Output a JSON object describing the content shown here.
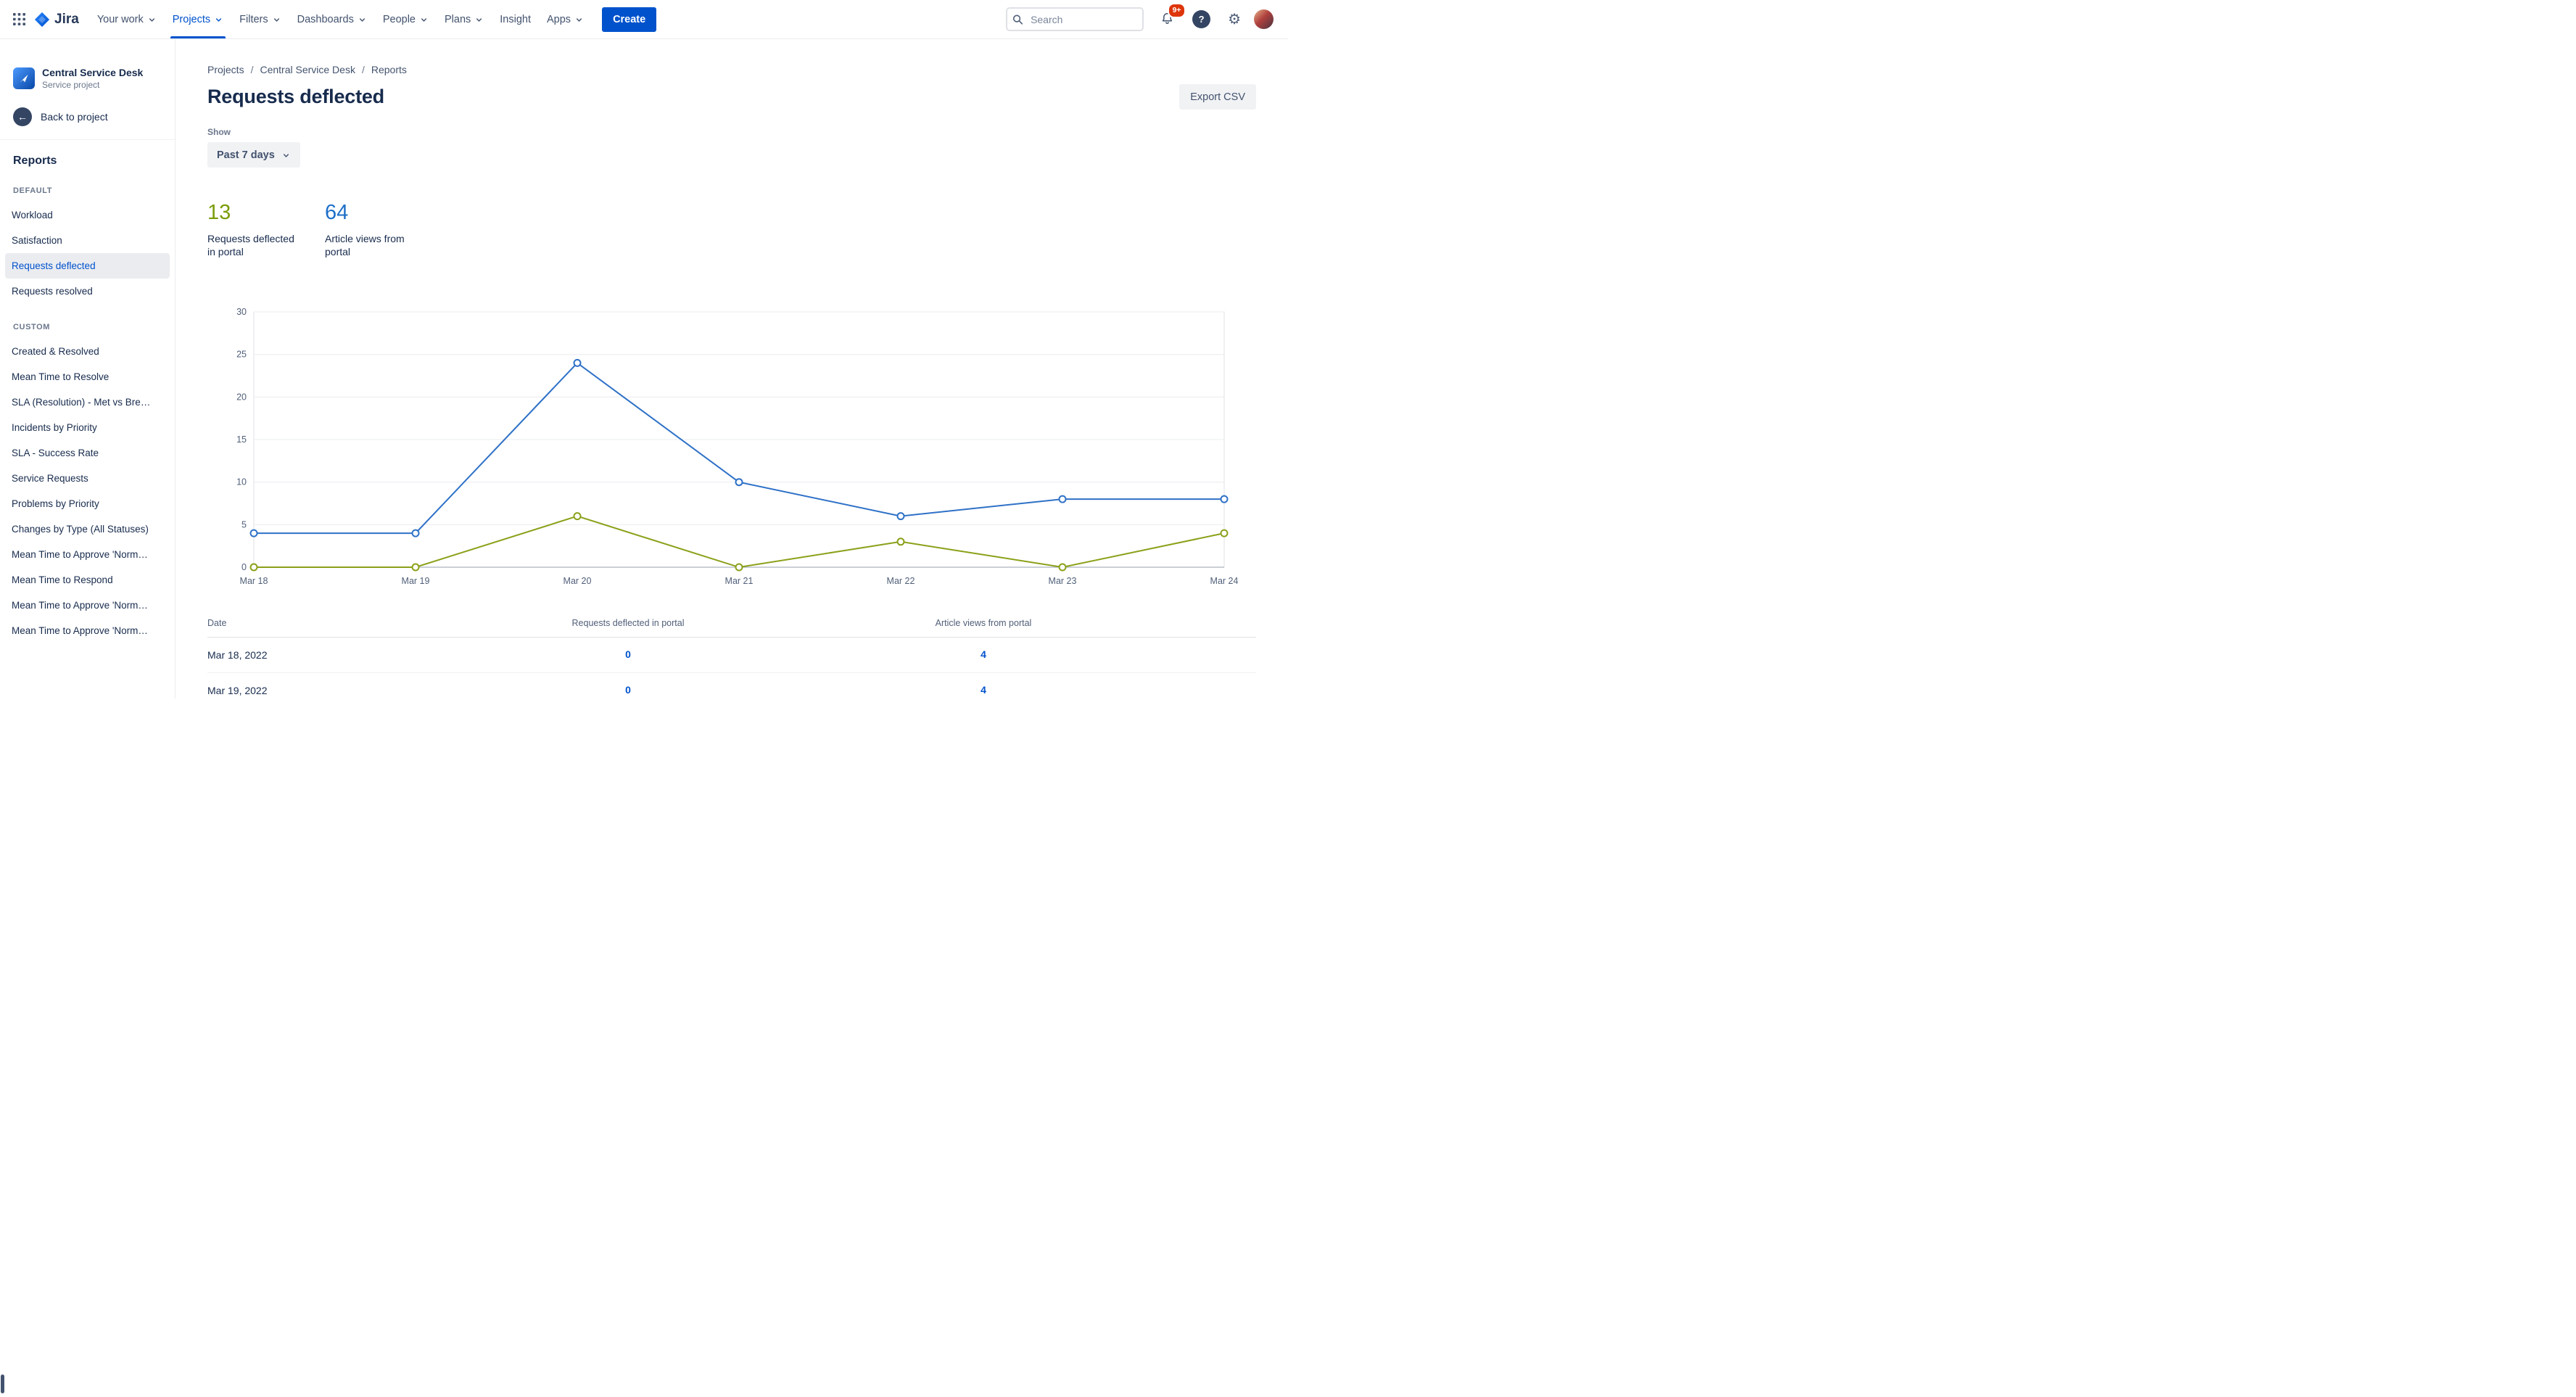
{
  "nav": {
    "logo_text": "Jira",
    "items": [
      {
        "label": "Your work",
        "chevron": true,
        "active": false
      },
      {
        "label": "Projects",
        "chevron": true,
        "active": true
      },
      {
        "label": "Filters",
        "chevron": true,
        "active": false
      },
      {
        "label": "Dashboards",
        "chevron": true,
        "active": false
      },
      {
        "label": "People",
        "chevron": true,
        "active": false
      },
      {
        "label": "Plans",
        "chevron": true,
        "active": false
      },
      {
        "label": "Insight",
        "chevron": false,
        "active": false
      },
      {
        "label": "Apps",
        "chevron": true,
        "active": false
      }
    ],
    "create_label": "Create",
    "search_placeholder": "Search",
    "notification_badge": "9+"
  },
  "sidebar": {
    "project_name": "Central Service Desk",
    "project_type": "Service project",
    "back_label": "Back to project",
    "section_title": "Reports",
    "groups": [
      {
        "heading": "DEFAULT",
        "selected": "Requests deflected",
        "items": [
          "Workload",
          "Satisfaction",
          "Requests deflected",
          "Requests resolved"
        ]
      },
      {
        "heading": "CUSTOM",
        "selected": "",
        "items": [
          "Created & Resolved",
          "Mean Time to Resolve",
          "SLA (Resolution) - Met vs Bre…",
          "Incidents by Priority",
          "SLA - Success Rate",
          "Service Requests",
          "Problems by Priority",
          "Changes by Type (All Statuses)",
          "Mean Time to Approve 'Norm…",
          "Mean Time to Respond",
          "Mean Time to Approve 'Norm…",
          "Mean Time to Approve 'Norm…"
        ]
      }
    ]
  },
  "main": {
    "breadcrumbs": [
      "Projects",
      "Central Service Desk",
      "Reports"
    ],
    "title": "Requests deflected",
    "export_label": "Export CSV",
    "show_label": "Show",
    "range_value": "Past 7 days",
    "stats": [
      {
        "value": "13",
        "label": "Requests deflected in portal",
        "color": "#7A9C09"
      },
      {
        "value": "64",
        "label": "Article views from portal",
        "color": "#1D6FC8"
      }
    ]
  },
  "chart_data": {
    "type": "line",
    "x": [
      "Mar 18",
      "Mar 19",
      "Mar 20",
      "Mar 21",
      "Mar 22",
      "Mar 23",
      "Mar 24"
    ],
    "series": [
      {
        "name": "Article views from portal",
        "color": "#2E71C7",
        "values": [
          4,
          4,
          24,
          10,
          6,
          8,
          8
        ]
      },
      {
        "name": "Requests deflected in portal",
        "color": "#8CA019",
        "values": [
          0,
          0,
          6,
          0,
          3,
          0,
          4
        ]
      }
    ],
    "ylim": [
      0,
      30
    ],
    "ytick_step": 5,
    "grid": true,
    "legend": "none"
  },
  "table": {
    "columns": [
      "Date",
      "Requests deflected in portal",
      "Article views from portal"
    ],
    "rows": [
      {
        "date": "Mar 18, 2022",
        "deflected": "0",
        "views": "4"
      },
      {
        "date": "Mar 19, 2022",
        "deflected": "0",
        "views": "4"
      }
    ]
  }
}
